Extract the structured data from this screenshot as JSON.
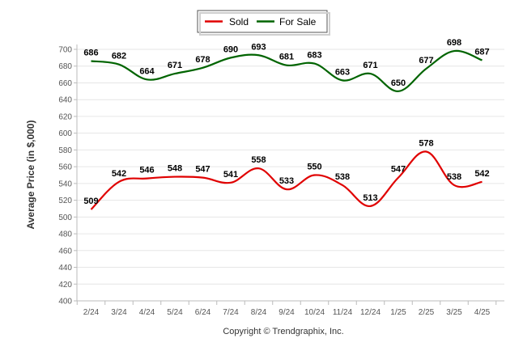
{
  "chart_data": {
    "type": "line",
    "title": "",
    "xlabel": "",
    "ylabel": "Average Price (in $,000)",
    "categories": [
      "2/24",
      "3/24",
      "4/24",
      "5/24",
      "6/24",
      "7/24",
      "8/24",
      "9/24",
      "10/24",
      "11/24",
      "12/24",
      "1/25",
      "2/25",
      "3/25",
      "4/25"
    ],
    "ylim": [
      400,
      700
    ],
    "yticks": [
      400,
      420,
      440,
      460,
      480,
      500,
      520,
      540,
      560,
      580,
      600,
      620,
      640,
      660,
      680,
      700
    ],
    "grid": true,
    "legend_position": "top-center",
    "series": [
      {
        "name": "Sold",
        "color": "#e00000",
        "values": [
          509,
          542,
          546,
          548,
          547,
          541,
          558,
          533,
          550,
          538,
          513,
          547,
          578,
          538,
          542
        ]
      },
      {
        "name": "For Sale",
        "color": "#006400",
        "values": [
          686,
          682,
          664,
          671,
          678,
          690,
          693,
          681,
          683,
          663,
          671,
          650,
          677,
          698,
          687
        ]
      }
    ]
  },
  "footer": {
    "copyright": "Copyright © Trendgraphix, Inc."
  }
}
